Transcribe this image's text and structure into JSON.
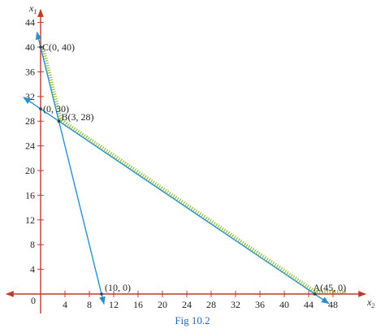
{
  "caption": "Fig  10.2",
  "chart_data": {
    "type": "line",
    "x_axis_label": "x2",
    "y_axis_label": "x1",
    "x_ticks": [
      4,
      8,
      12,
      16,
      20,
      24,
      28,
      32,
      36,
      40,
      44,
      48
    ],
    "y_ticks": [
      4,
      8,
      12,
      16,
      20,
      24,
      28,
      32,
      36,
      40,
      44
    ],
    "origin_label": "0",
    "xlim": [
      -4,
      50
    ],
    "ylim": [
      -4,
      46
    ],
    "series": [
      {
        "points": [
          [
            0,
            40
          ],
          [
            3,
            28
          ],
          [
            10,
            0
          ]
        ]
      },
      {
        "points": [
          [
            0,
            30
          ],
          [
            3,
            28
          ],
          [
            45,
            0
          ]
        ]
      }
    ],
    "labeled_points": [
      {
        "label": "C(0, 40)",
        "x": 0,
        "y": 40
      },
      {
        "label": "(0, 30)",
        "x": 0,
        "y": 30
      },
      {
        "label": "B(3, 28)",
        "x": 3,
        "y": 28
      },
      {
        "label": "(10, 0)",
        "x": 10,
        "y": 0
      },
      {
        "label": "A(45, 0)",
        "x": 45,
        "y": 0
      }
    ],
    "feasible_boundary": [
      [
        0,
        40
      ],
      [
        3,
        28
      ],
      [
        45,
        0
      ],
      [
        50,
        0
      ]
    ],
    "colors": {
      "axes": "#c0392b",
      "constraint_lines": "#2b8fc9",
      "feasible_hatch": "#8fbf3f"
    }
  }
}
